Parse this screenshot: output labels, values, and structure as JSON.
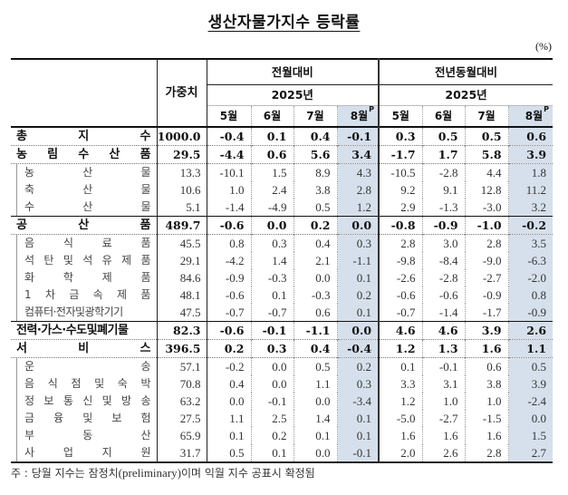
{
  "title": "생산자물가지수 등락률",
  "unit": "(%)",
  "header": {
    "weight": "가중치",
    "groups": [
      {
        "label": "전월대비",
        "year": "2025년",
        "months": [
          "5월",
          "6월",
          "7월",
          "8월"
        ]
      },
      {
        "label": "전년동월대비",
        "year": "2025년",
        "months": [
          "5월",
          "6월",
          "7월",
          "8월"
        ]
      }
    ],
    "preliminary_mark": "P"
  },
  "rows": [
    {
      "type": "main",
      "label_chars": [
        "총",
        "지",
        "수"
      ],
      "weight": "1000.0",
      "mom": [
        "-0.4",
        "0.1",
        "0.4",
        "-0.1"
      ],
      "yoy": [
        "0.3",
        "0.5",
        "0.5",
        "0.6"
      ]
    },
    {
      "type": "main",
      "label_chars": [
        "농",
        "림",
        "수",
        "산",
        "품"
      ],
      "weight": "29.5",
      "mom": [
        "-4.4",
        "0.6",
        "5.6",
        "3.4"
      ],
      "yoy": [
        "-1.7",
        "1.7",
        "5.8",
        "3.9"
      ]
    },
    {
      "type": "sub",
      "label_chars": [
        "농",
        "산",
        "물"
      ],
      "weight": "13.3",
      "mom": [
        "-10.1",
        "1.5",
        "8.9",
        "4.3"
      ],
      "yoy": [
        "-10.5",
        "-2.8",
        "4.4",
        "1.8"
      ]
    },
    {
      "type": "sub",
      "label_chars": [
        "축",
        "산",
        "물"
      ],
      "weight": "10.6",
      "mom": [
        "1.0",
        "2.4",
        "3.8",
        "2.8"
      ],
      "yoy": [
        "9.2",
        "9.1",
        "12.8",
        "11.2"
      ]
    },
    {
      "type": "sub",
      "label_chars": [
        "수",
        "산",
        "물"
      ],
      "weight": "5.1",
      "mom": [
        "-1.4",
        "-4.9",
        "0.5",
        "1.2"
      ],
      "yoy": [
        "2.9",
        "-1.3",
        "-3.0",
        "3.2"
      ]
    },
    {
      "type": "main",
      "label_chars": [
        "공",
        "산",
        "품"
      ],
      "weight": "489.7",
      "mom": [
        "-0.6",
        "0.0",
        "0.2",
        "0.0"
      ],
      "yoy": [
        "-0.8",
        "-0.9",
        "-1.0",
        "-0.2"
      ]
    },
    {
      "type": "sub",
      "label_chars": [
        "음",
        "식",
        "료",
        "품"
      ],
      "weight": "45.5",
      "mom": [
        "0.8",
        "0.3",
        "0.4",
        "0.3"
      ],
      "yoy": [
        "2.8",
        "3.0",
        "2.8",
        "3.5"
      ]
    },
    {
      "type": "sub",
      "label_chars": [
        "석",
        "탄",
        "및",
        "석",
        "유",
        "제",
        "품"
      ],
      "weight": "29.1",
      "mom": [
        "-4.2",
        "1.4",
        "2.1",
        "-1.1"
      ],
      "yoy": [
        "-9.8",
        "-8.4",
        "-9.0",
        "-6.3"
      ]
    },
    {
      "type": "sub",
      "label_chars": [
        "화",
        "학",
        "제",
        "품"
      ],
      "weight": "84.6",
      "mom": [
        "-0.9",
        "-0.3",
        "0.0",
        "0.1"
      ],
      "yoy": [
        "-2.6",
        "-2.8",
        "-2.7",
        "-2.0"
      ]
    },
    {
      "type": "sub",
      "label_chars": [
        "1",
        "차",
        "금",
        "속",
        "제",
        "품"
      ],
      "weight": "48.1",
      "mom": [
        "-0.6",
        "0.1",
        "-0.3",
        "0.2"
      ],
      "yoy": [
        "-0.6",
        "-0.6",
        "-0.9",
        "0.8"
      ]
    },
    {
      "type": "sub",
      "label": "컴퓨터·전자및광학기기",
      "weight": "47.5",
      "mom": [
        "-0.7",
        "-0.7",
        "0.6",
        "0.1"
      ],
      "yoy": [
        "-0.7",
        "-1.4",
        "-1.7",
        "-0.9"
      ]
    },
    {
      "type": "main",
      "label": "전력·가스·수도및폐기물",
      "weight": "82.3",
      "mom": [
        "-0.6",
        "-0.1",
        "-1.1",
        "0.0"
      ],
      "yoy": [
        "4.6",
        "4.6",
        "3.9",
        "2.6"
      ]
    },
    {
      "type": "main",
      "label_chars": [
        "서",
        "비",
        "스"
      ],
      "weight": "396.5",
      "mom": [
        "0.2",
        "0.3",
        "0.4",
        "-0.4"
      ],
      "yoy": [
        "1.2",
        "1.3",
        "1.6",
        "1.1"
      ]
    },
    {
      "type": "sub",
      "label_chars": [
        "운",
        "송"
      ],
      "weight": "57.1",
      "mom": [
        "-0.2",
        "0.0",
        "0.5",
        "0.2"
      ],
      "yoy": [
        "0.1",
        "-0.1",
        "0.6",
        "0.5"
      ]
    },
    {
      "type": "sub",
      "label_chars": [
        "음",
        "식",
        "점",
        "및",
        "숙",
        "박"
      ],
      "weight": "70.8",
      "mom": [
        "0.4",
        "0.0",
        "1.1",
        "0.3"
      ],
      "yoy": [
        "3.3",
        "3.1",
        "3.8",
        "3.9"
      ]
    },
    {
      "type": "sub",
      "label_chars": [
        "정",
        "보",
        "통",
        "신",
        "및",
        "방",
        "송"
      ],
      "weight": "63.2",
      "mom": [
        "0.0",
        "-0.1",
        "0.0",
        "-3.4"
      ],
      "yoy": [
        "1.2",
        "1.0",
        "1.0",
        "-2.4"
      ]
    },
    {
      "type": "sub",
      "label_chars": [
        "금",
        "융",
        "및",
        "보",
        "험"
      ],
      "weight": "27.5",
      "mom": [
        "1.1",
        "2.5",
        "1.4",
        "0.1"
      ],
      "yoy": [
        "-5.0",
        "-2.7",
        "-1.5",
        "0.0"
      ]
    },
    {
      "type": "sub",
      "label_chars": [
        "부",
        "동",
        "산"
      ],
      "weight": "65.9",
      "mom": [
        "0.1",
        "0.2",
        "0.1",
        "0.1"
      ],
      "yoy": [
        "1.6",
        "1.6",
        "1.6",
        "1.5"
      ]
    },
    {
      "type": "sub",
      "label_chars": [
        "사",
        "업",
        "지",
        "원"
      ],
      "weight": "31.7",
      "mom": [
        "0.5",
        "0.1",
        "0.0",
        "-0.1"
      ],
      "yoy": [
        "2.0",
        "2.6",
        "2.8",
        "2.7"
      ]
    }
  ],
  "footnote": {
    "prefix": "주 : 당월 지수는 잠정치",
    "english": "(preliminary)",
    "suffix": "이며 익월 지수 공표시 확정됨"
  },
  "colors": {
    "preliminary_shade": "#d6e0ec"
  }
}
